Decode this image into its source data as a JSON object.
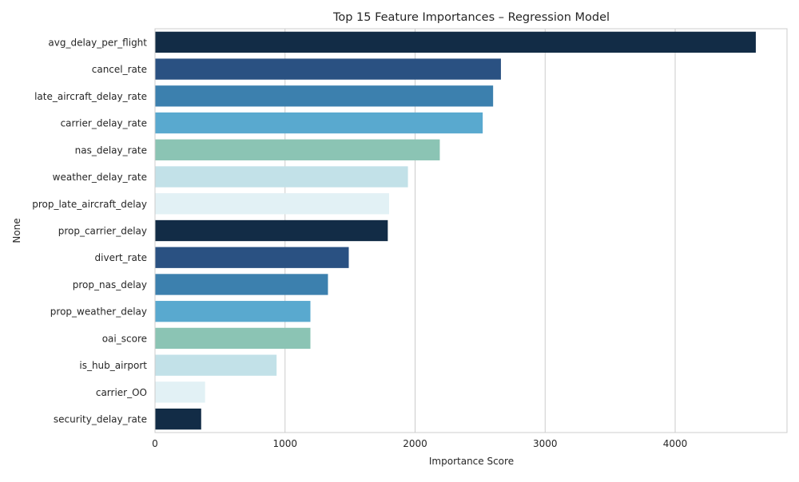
{
  "chart_data": {
    "type": "bar",
    "orientation": "horizontal",
    "title": "Top 15 Feature Importances – Regression Model",
    "xlabel": "Importance Score",
    "ylabel": "None",
    "xlim": [
      0,
      4860
    ],
    "xticks": [
      0,
      1000,
      2000,
      3000,
      4000
    ],
    "grid": true,
    "categories": [
      "avg_delay_per_flight",
      "cancel_rate",
      "late_aircraft_delay_rate",
      "carrier_delay_rate",
      "nas_delay_rate",
      "weather_delay_rate",
      "prop_late_aircraft_delay",
      "prop_carrier_delay",
      "divert_rate",
      "prop_nas_delay",
      "prop_weather_delay",
      "oai_score",
      "is_hub_airport",
      "carrier_OO",
      "security_delay_rate"
    ],
    "values": [
      4620,
      2660,
      2600,
      2520,
      2190,
      1945,
      1800,
      1790,
      1490,
      1330,
      1195,
      1195,
      935,
      385,
      355
    ],
    "colors": [
      "#122c46",
      "#2a5182",
      "#3c80ae",
      "#59a9cf",
      "#8bc4b4",
      "#c2e1e8",
      "#e2f1f5",
      "#122c46",
      "#2a5182",
      "#3c80ae",
      "#59a9cf",
      "#8bc4b4",
      "#c2e1e8",
      "#e2f1f5",
      "#122c46"
    ],
    "grid_color": "#cccccc",
    "spine_color": "#cccccc"
  }
}
